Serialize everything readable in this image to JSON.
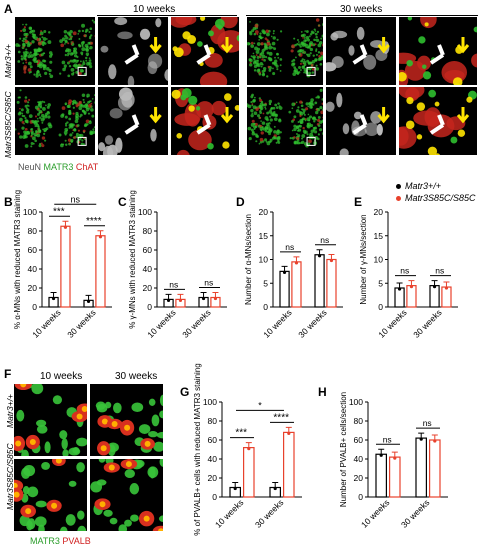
{
  "panels": {
    "A": {
      "label": "A",
      "headers": [
        "10 weeks",
        "30 weeks"
      ],
      "rows": [
        "Matr3+/+",
        "Matr3S85C/S85C"
      ],
      "stain_legend": {
        "neun": "NeuN",
        "matr3": "MATR3",
        "chat": "ChAT"
      }
    },
    "F": {
      "label": "F",
      "headers": [
        "10 weeks",
        "30 weeks"
      ],
      "rows": [
        "Matr3+/+",
        "Matr3S85C/S85C"
      ],
      "stain_legend": {
        "matr3": "MATR3",
        "pvalb": "PVALB"
      }
    }
  },
  "legend": {
    "wt": "Matr3+/+",
    "mut": "Matr3S85C/S85C"
  },
  "colors": {
    "wt": "#000000",
    "mut": "#e8412c",
    "green": "#2fbf2f",
    "red": "#e02020",
    "yellow": "#ffe400"
  },
  "chart_data": [
    {
      "id": "B",
      "type": "bar",
      "categories": [
        "10 weeks",
        "30 weeks"
      ],
      "ylabel": "% α-MNs with reduced MATR3 staining",
      "ylim": [
        0,
        100
      ],
      "yticks": [
        0,
        20,
        40,
        60,
        80,
        100
      ],
      "series": [
        {
          "name": "Matr3+/+",
          "values": [
            10,
            7
          ]
        },
        {
          "name": "Matr3S85C/S85C",
          "values": [
            85,
            75
          ]
        }
      ],
      "annotations": [
        "***",
        "****",
        "ns"
      ]
    },
    {
      "id": "C",
      "type": "bar",
      "categories": [
        "10 weeks",
        "30 weeks"
      ],
      "ylabel": "% γ-MNs with reduced MATR3 staining",
      "ylim": [
        0,
        100
      ],
      "yticks": [
        0,
        20,
        40,
        60,
        80,
        100
      ],
      "series": [
        {
          "name": "Matr3+/+",
          "values": [
            8,
            10
          ]
        },
        {
          "name": "Matr3S85C/S85C",
          "values": [
            8,
            10
          ]
        }
      ],
      "annotations": [
        "ns",
        "ns"
      ]
    },
    {
      "id": "D",
      "type": "bar",
      "categories": [
        "10 weeks",
        "30 weeks"
      ],
      "ylabel": "Number of α-MNs/section",
      "ylim": [
        0,
        20
      ],
      "yticks": [
        0,
        5,
        10,
        15,
        20
      ],
      "series": [
        {
          "name": "Matr3+/+",
          "values": [
            7.5,
            11
          ]
        },
        {
          "name": "Matr3S85C/S85C",
          "values": [
            9.5,
            10
          ]
        }
      ],
      "annotations": [
        "ns",
        "ns"
      ]
    },
    {
      "id": "E",
      "type": "bar",
      "categories": [
        "10 weeks",
        "30 weeks"
      ],
      "ylabel": "Number of γ-MNs/section",
      "ylim": [
        0,
        20
      ],
      "yticks": [
        0,
        5,
        10,
        15,
        20
      ],
      "series": [
        {
          "name": "Matr3+/+",
          "values": [
            4,
            4.5
          ]
        },
        {
          "name": "Matr3S85C/S85C",
          "values": [
            4.5,
            4.2
          ]
        }
      ],
      "annotations": [
        "ns",
        "ns"
      ]
    },
    {
      "id": "G",
      "type": "bar",
      "categories": [
        "10 weeks",
        "30 weeks"
      ],
      "ylabel": "% of PVALB+ cells with reduced MATR3 staining",
      "ylim": [
        0,
        100
      ],
      "yticks": [
        0,
        20,
        40,
        60,
        80,
        100
      ],
      "series": [
        {
          "name": "Matr3+/+",
          "values": [
            10,
            10
          ]
        },
        {
          "name": "Matr3S85C/S85C",
          "values": [
            52,
            68
          ]
        }
      ],
      "annotations": [
        "***",
        "****",
        "*"
      ]
    },
    {
      "id": "H",
      "type": "bar",
      "categories": [
        "10 weeks",
        "30 weeks"
      ],
      "ylabel": "Number of PVALB+ cells/section",
      "ylim": [
        0,
        100
      ],
      "yticks": [
        0,
        20,
        40,
        60,
        80,
        100
      ],
      "series": [
        {
          "name": "Matr3+/+",
          "values": [
            45,
            62
          ]
        },
        {
          "name": "Matr3S85C/S85C",
          "values": [
            42,
            60
          ]
        }
      ],
      "annotations": [
        "ns",
        "ns"
      ]
    }
  ]
}
